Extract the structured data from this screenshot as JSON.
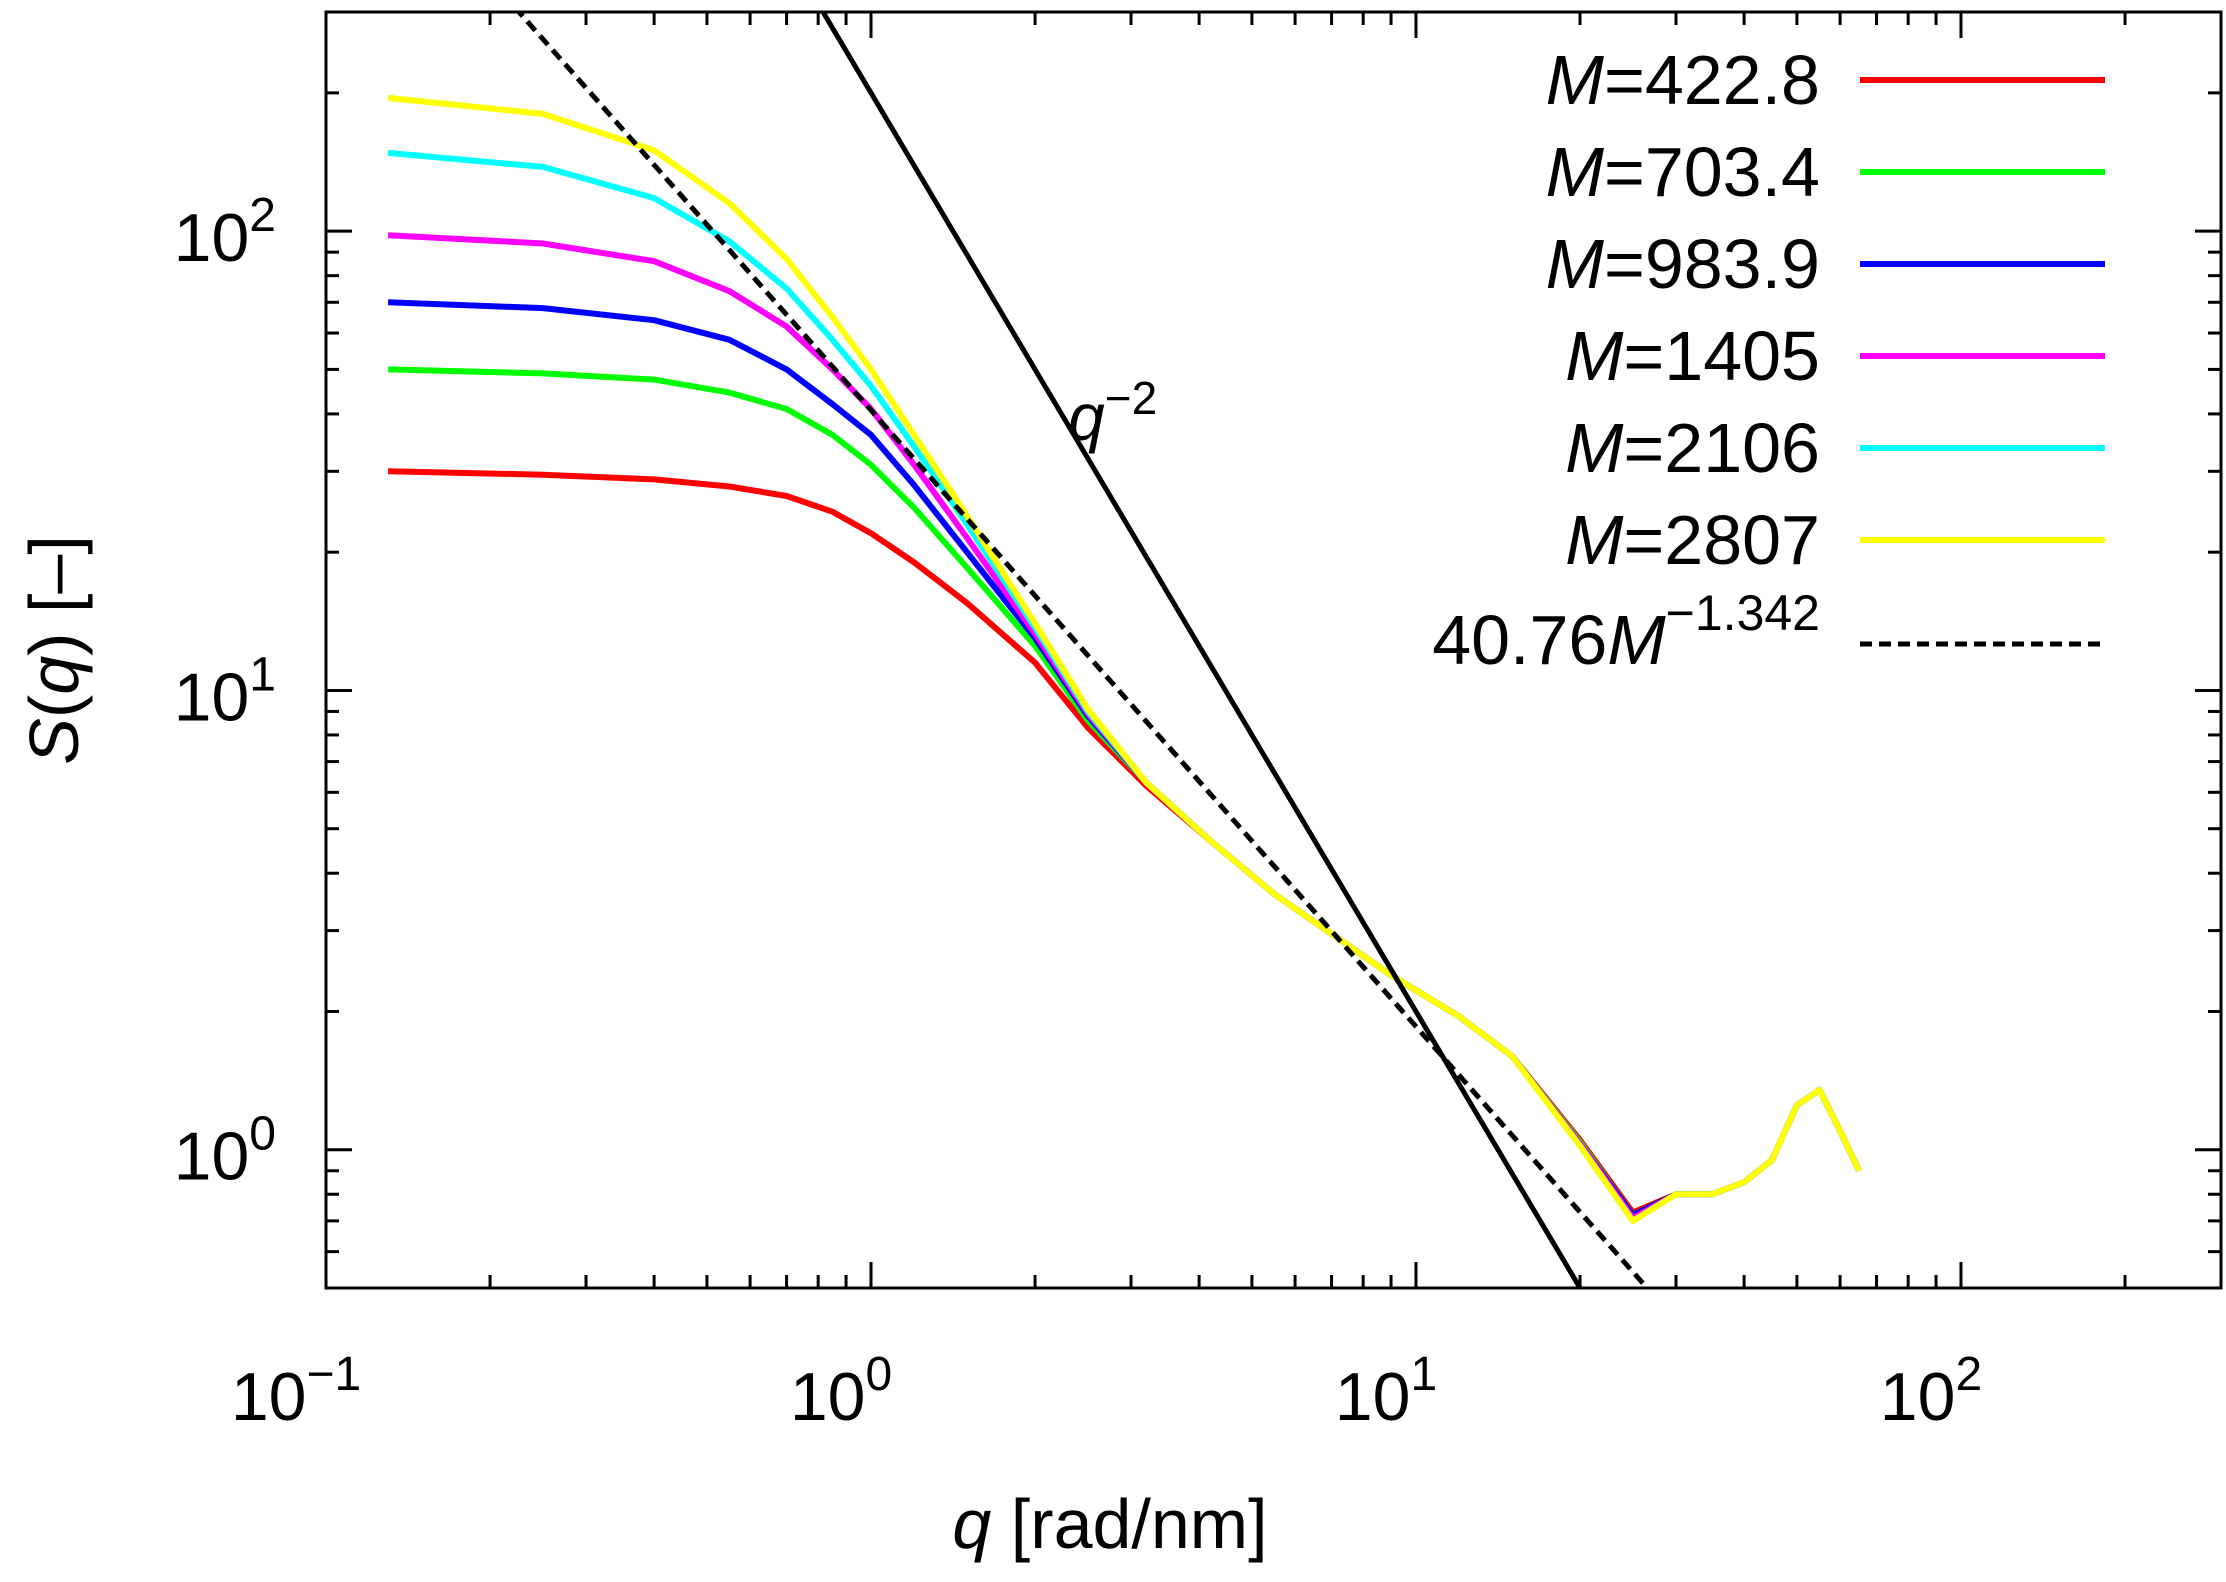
{
  "chart_data": {
    "type": "line",
    "xscale": "log",
    "yscale": "log",
    "xlim": [
      0.1,
      300
    ],
    "ylim": [
      0.5,
      300
    ],
    "xlabel_var": "q",
    "xlabel_unit": " [rad/nm]",
    "ylabel_var": "S",
    "ylabel_open": "(",
    "ylabel_inner": "q",
    "ylabel_close": ") [–]",
    "x_ticks": [
      {
        "value": 0.1,
        "base": "10",
        "exp": "−1"
      },
      {
        "value": 1,
        "base": "10",
        "exp": "0"
      },
      {
        "value": 10,
        "base": "10",
        "exp": "1"
      },
      {
        "value": 100,
        "base": "10",
        "exp": "2"
      }
    ],
    "y_ticks": [
      {
        "value": 1,
        "base": "10",
        "exp": "0"
      },
      {
        "value": 10,
        "base": "10",
        "exp": "1"
      },
      {
        "value": 100,
        "base": "10",
        "exp": "2"
      }
    ],
    "series": [
      {
        "name": "M",
        "value_label": "=422.8",
        "color": "#ff0000",
        "x": [
          0.13,
          0.25,
          0.4,
          0.55,
          0.7,
          0.85,
          1.0,
          1.2,
          1.5,
          2.0,
          2.5,
          3.2,
          4.2,
          5.5,
          7.0,
          9.0,
          12.0,
          15.0,
          20.0,
          25.0,
          30.0,
          35.0,
          40.0,
          45.0,
          50.0,
          55.0,
          60.0,
          65.0
        ],
        "y": [
          30,
          29.5,
          28.8,
          27.8,
          26.5,
          24.5,
          22,
          19,
          15.5,
          11.5,
          8.3,
          6.2,
          4.7,
          3.6,
          2.95,
          2.4,
          1.95,
          1.6,
          1.05,
          0.73,
          0.8,
          0.8,
          0.85,
          0.95,
          1.25,
          1.35,
          1.1,
          0.9
        ]
      },
      {
        "name": "M",
        "value_label": "=703.4",
        "color": "#00ff00",
        "x": [
          0.13,
          0.25,
          0.4,
          0.55,
          0.7,
          0.85,
          1.0,
          1.2,
          1.5,
          2.0,
          2.5,
          3.2,
          4.2,
          5.5,
          7.0,
          9.0,
          12.0,
          15.0,
          20.0,
          25.0,
          30.0,
          35.0,
          40.0,
          45.0,
          50.0,
          55.0,
          60.0,
          65.0
        ],
        "y": [
          50,
          49,
          47.5,
          44.5,
          41,
          36,
          31,
          25,
          18.5,
          12.5,
          8.6,
          6.3,
          4.7,
          3.6,
          2.95,
          2.4,
          1.95,
          1.6,
          1.04,
          0.72,
          0.8,
          0.8,
          0.85,
          0.95,
          1.25,
          1.35,
          1.1,
          0.9
        ]
      },
      {
        "name": "M",
        "value_label": "=983.9",
        "color": "#0000ff",
        "x": [
          0.13,
          0.25,
          0.4,
          0.55,
          0.7,
          0.85,
          1.0,
          1.2,
          1.5,
          2.0,
          2.5,
          3.2,
          4.2,
          5.5,
          7.0,
          9.0,
          12.0,
          15.0,
          20.0,
          25.0,
          30.0,
          35.0,
          40.0,
          45.0,
          50.0,
          55.0,
          60.0,
          65.0
        ],
        "y": [
          70,
          68,
          64,
          58,
          50,
          42,
          36,
          28,
          20,
          13,
          8.8,
          6.3,
          4.7,
          3.6,
          2.95,
          2.4,
          1.95,
          1.6,
          1.03,
          0.72,
          0.8,
          0.8,
          0.85,
          0.95,
          1.25,
          1.35,
          1.1,
          0.9
        ]
      },
      {
        "name": "M",
        "value_label": "=1405",
        "color": "#ff00ff",
        "x": [
          0.13,
          0.25,
          0.4,
          0.55,
          0.7,
          0.85,
          1.0,
          1.2,
          1.5,
          2.0,
          2.5,
          3.2,
          4.2,
          5.5,
          7.0,
          9.0,
          12.0,
          15.0,
          20.0,
          25.0,
          30.0,
          35.0,
          40.0,
          45.0,
          50.0,
          55.0,
          60.0,
          65.0
        ],
        "y": [
          98,
          94,
          86,
          74,
          62,
          50,
          41,
          31,
          21.5,
          13.3,
          8.9,
          6.3,
          4.7,
          3.6,
          2.95,
          2.4,
          1.95,
          1.6,
          1.03,
          0.71,
          0.8,
          0.8,
          0.85,
          0.95,
          1.25,
          1.35,
          1.1,
          0.9
        ]
      },
      {
        "name": "M",
        "value_label": "=2106",
        "color": "#00ffff",
        "x": [
          0.13,
          0.25,
          0.4,
          0.55,
          0.7,
          0.85,
          1.0,
          1.2,
          1.5,
          2.0,
          2.5,
          3.2,
          4.2,
          5.5,
          7.0,
          9.0,
          12.0,
          15.0,
          20.0,
          25.0,
          30.0,
          35.0,
          40.0,
          45.0,
          50.0,
          55.0,
          60.0,
          65.0
        ],
        "y": [
          148,
          138,
          118,
          95,
          75,
          58,
          46,
          34,
          23,
          13.7,
          9.0,
          6.3,
          4.7,
          3.6,
          2.95,
          2.4,
          1.95,
          1.6,
          1.02,
          0.7,
          0.8,
          0.8,
          0.85,
          0.95,
          1.25,
          1.35,
          1.1,
          0.9
        ]
      },
      {
        "name": "M",
        "value_label": "=2807",
        "color": "#ffff00",
        "x": [
          0.13,
          0.25,
          0.4,
          0.55,
          0.7,
          0.85,
          1.0,
          1.2,
          1.5,
          2.0,
          2.5,
          3.2,
          4.2,
          5.5,
          7.0,
          9.0,
          12.0,
          15.0,
          20.0,
          25.0,
          30.0,
          35.0,
          40.0,
          45.0,
          50.0,
          55.0,
          60.0,
          65.0
        ],
        "y": [
          195,
          180,
          150,
          115,
          87,
          65,
          50,
          36,
          24,
          14,
          9.1,
          6.3,
          4.7,
          3.6,
          2.95,
          2.4,
          1.95,
          1.6,
          1.02,
          0.7,
          0.8,
          0.8,
          0.85,
          0.95,
          1.25,
          1.35,
          1.1,
          0.9
        ]
      }
    ],
    "fit_line": {
      "label_prefix": "40.76",
      "label_var": "M",
      "label_exp": "−1.342",
      "coefficient": 40.76,
      "exponent": -1.342,
      "x_range": [
        0.1,
        30
      ],
      "style": "dashed",
      "color": "#000000"
    },
    "reference_line": {
      "label_var": "q",
      "label_exp": "−2",
      "coefficient": 200,
      "exponent": -2,
      "x_range": [
        0.1,
        30
      ],
      "style": "solid",
      "color": "#000000"
    }
  }
}
